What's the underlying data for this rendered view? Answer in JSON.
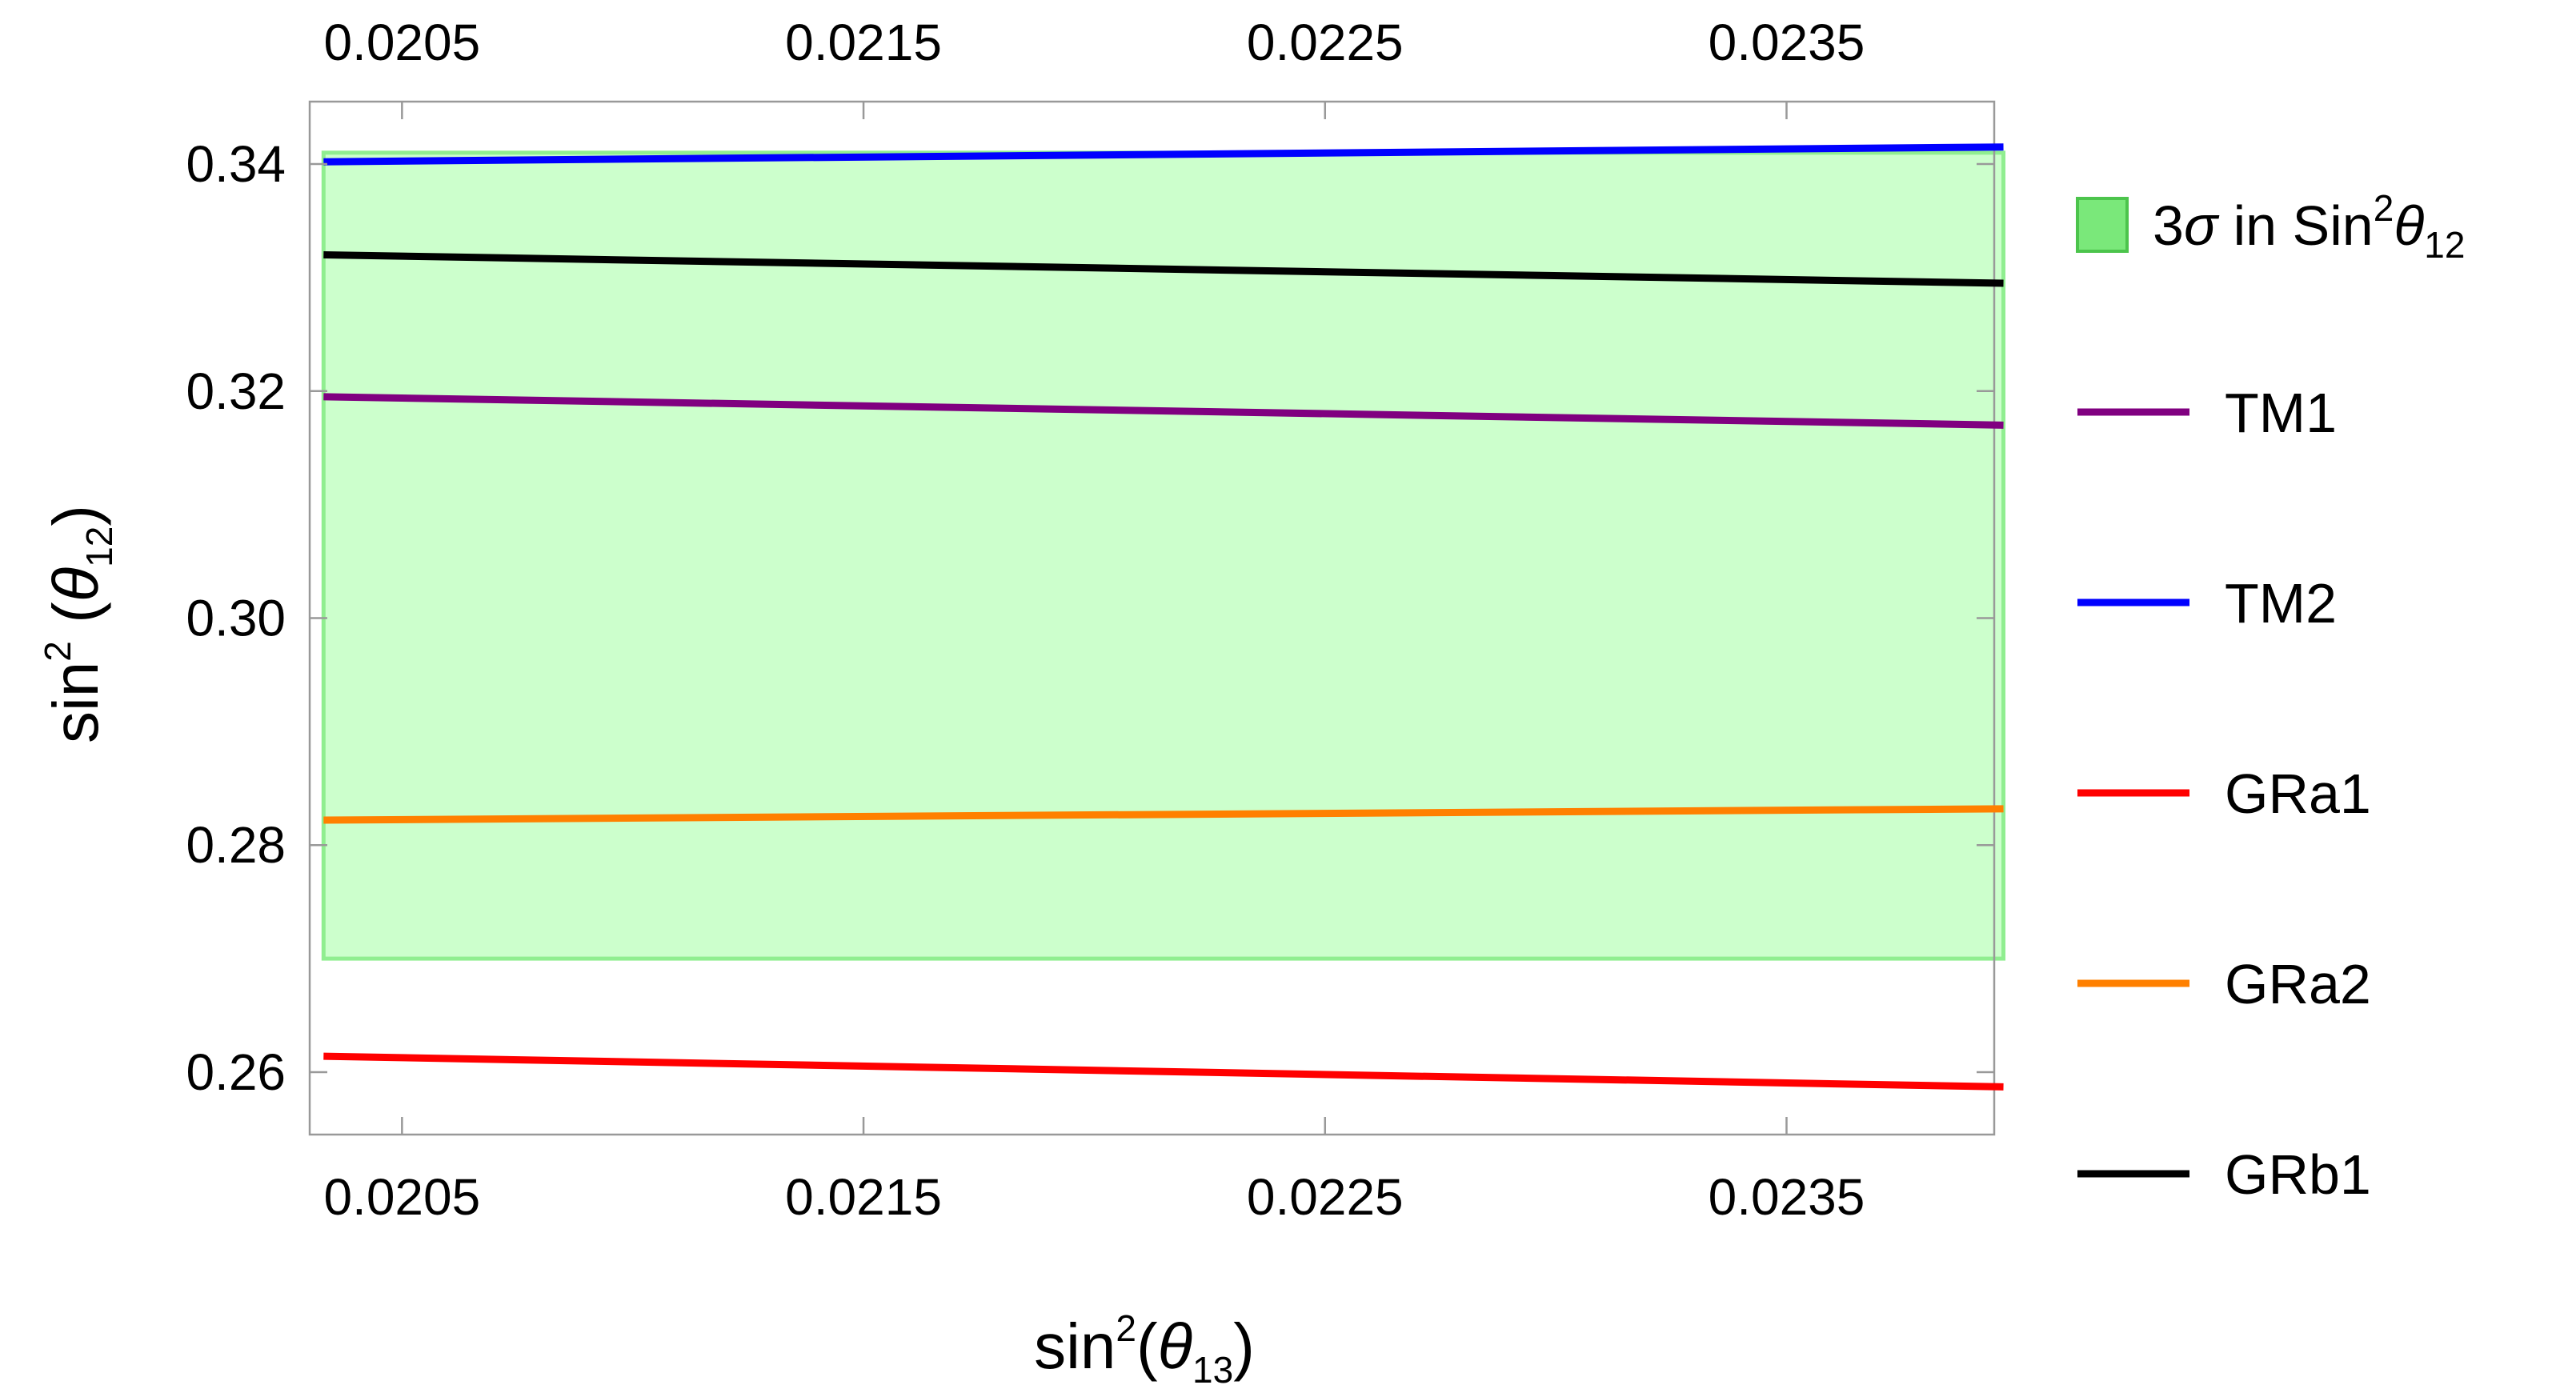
{
  "chart_data": {
    "type": "line",
    "xlabel": {
      "base": "sin",
      "exp": "2",
      "open": "(",
      "sym": "θ",
      "sub": "13",
      "close": ")"
    },
    "ylabel": {
      "base": "sin",
      "exp": "2",
      "open": " (",
      "sym": "θ",
      "sub": "12",
      "close": ")"
    },
    "xlim": [
      0.0203,
      0.02395
    ],
    "ylim": [
      0.2545,
      0.3455
    ],
    "x_ticks": [
      {
        "value": 0.0205,
        "label": "0.0205"
      },
      {
        "value": 0.0215,
        "label": "0.0215"
      },
      {
        "value": 0.0225,
        "label": "0.0225"
      },
      {
        "value": 0.0235,
        "label": "0.0235"
      }
    ],
    "y_ticks": [
      {
        "value": 0.26,
        "label": "0.26"
      },
      {
        "value": 0.28,
        "label": "0.28"
      },
      {
        "value": 0.3,
        "label": "0.30"
      },
      {
        "value": 0.32,
        "label": "0.32"
      },
      {
        "value": 0.34,
        "label": "0.34"
      }
    ],
    "band": {
      "name": {
        "prefix": "3",
        "sigma": "σ",
        "mid": " in Sin",
        "exp": "2",
        "sym": "θ",
        "sub": "12"
      },
      "x": [
        0.02033,
        0.02397
      ],
      "y": [
        0.27,
        0.341
      ],
      "fill": "#ccffcc",
      "stroke": "#90ee90",
      "swatch": "#7ae87a"
    },
    "series": [
      {
        "name": "TM1",
        "color": "#800080",
        "x": [
          0.02033,
          0.02397
        ],
        "y": [
          0.3195,
          0.317
        ]
      },
      {
        "name": "TM2",
        "color": "#0000ff",
        "x": [
          0.02033,
          0.02397
        ],
        "y": [
          0.3402,
          0.3415
        ]
      },
      {
        "name": "GRa1",
        "color": "#ff0000",
        "x": [
          0.02033,
          0.02397
        ],
        "y": [
          0.2614,
          0.2587
        ]
      },
      {
        "name": "GRa2",
        "color": "#ff8000",
        "x": [
          0.02033,
          0.02397
        ],
        "y": [
          0.2822,
          0.2832
        ]
      },
      {
        "name": "GRb1",
        "color": "#000000",
        "x": [
          0.02033,
          0.02397
        ],
        "y": [
          0.332,
          0.3295
        ]
      }
    ],
    "grid": false,
    "legend_position": "right"
  }
}
